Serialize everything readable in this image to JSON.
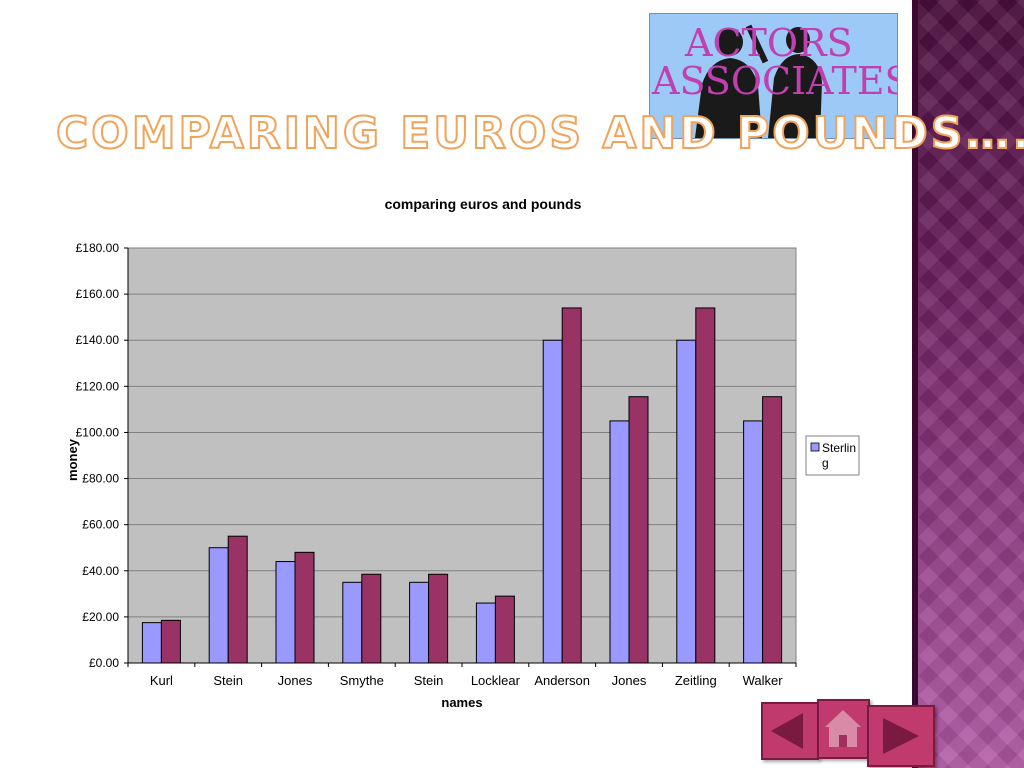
{
  "slide": {
    "title": "comparing euros and pounds….",
    "logo_line1": "ACTORS",
    "logo_line2": "ASSOCIATES"
  },
  "colors": {
    "accent": "#c03a6e",
    "series1": "#9999ff",
    "series2": "#993366",
    "plot_bg": "#c0c0c0"
  },
  "nav": {
    "prev_icon": "left-arrow-icon",
    "home_icon": "home-icon",
    "next_icon": "right-arrow-icon"
  },
  "chart_data": {
    "type": "bar",
    "title": "comparing euros and pounds",
    "xlabel": "names",
    "ylabel": "money",
    "ylim": [
      0,
      180
    ],
    "yticks": [
      "£0.00",
      "£20.00",
      "£40.00",
      "£60.00",
      "£80.00",
      "£100.00",
      "£120.00",
      "£140.00",
      "£160.00",
      "£180.00"
    ],
    "grid": true,
    "legend_position": "right",
    "categories": [
      "Kurl",
      "Stein",
      "Jones",
      "Smythe",
      "Stein",
      "Locklear",
      "Anderson",
      "Jones",
      "Zeitling",
      "Walker"
    ],
    "series": [
      {
        "name": "Sterling",
        "color": "#9999ff",
        "values": [
          17.5,
          50,
          44,
          35,
          35,
          26,
          140,
          105,
          140,
          105
        ]
      },
      {
        "color": "#993366",
        "values": [
          18.5,
          55,
          48,
          38.5,
          38.5,
          29,
          154,
          115.5,
          154,
          115.5
        ]
      }
    ]
  }
}
